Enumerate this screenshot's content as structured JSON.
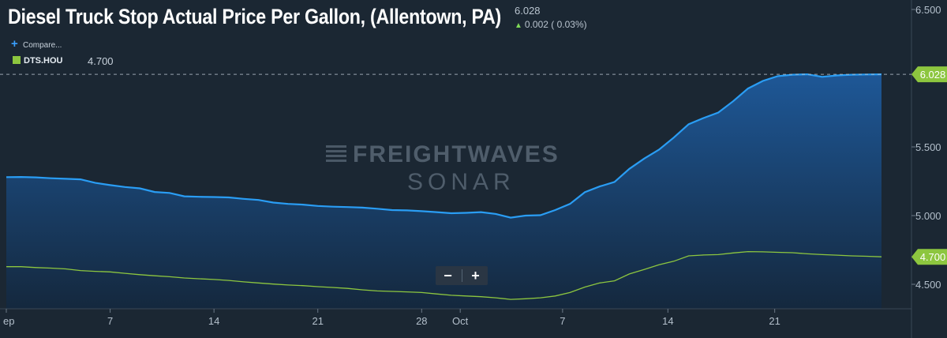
{
  "header": {
    "title": "Diesel Truck Stop Actual Price Per Gallon, (Allentown, PA)",
    "last_value": "6.028",
    "change": "0.002 ( 0.03%)"
  },
  "compare_label": "Compare...",
  "legend": {
    "label": "DTS.HOU",
    "value": "4.700"
  },
  "watermark": {
    "line1": "FREIGHTWAVES",
    "line2": "SONAR"
  },
  "zoom": {
    "minus": "−",
    "plus": "+"
  },
  "colors": {
    "background": "#1b2733",
    "primary": "#2a9df4",
    "secondary": "#8dc63f",
    "badge": "#8dc63f"
  },
  "chart_data": {
    "type": "area",
    "xlabel": "",
    "ylabel": "",
    "ylim": [
      4.4,
      6.55
    ],
    "y_ticks": [
      "6.500",
      "5.500",
      "5.000",
      "4.500"
    ],
    "x_ticks": [
      "ep",
      "7",
      "14",
      "21",
      "28",
      "Oct",
      "7",
      "14",
      "21"
    ],
    "series": [
      {
        "name": "Diesel Truck Stop Actual Price Per Gallon, (Allentown, PA)",
        "values": [
          5.28,
          5.281,
          5.278,
          5.272,
          5.268,
          5.264,
          5.238,
          5.222,
          5.208,
          5.198,
          5.172,
          5.165,
          5.14,
          5.137,
          5.135,
          5.132,
          5.122,
          5.114,
          5.095,
          5.085,
          5.08,
          5.07,
          5.065,
          5.062,
          5.058,
          5.05,
          5.04,
          5.038,
          5.032,
          5.025,
          5.017,
          5.02,
          5.025,
          5.012,
          4.985,
          5.0,
          5.003,
          5.04,
          5.085,
          5.17,
          5.212,
          5.245,
          5.34,
          5.415,
          5.48,
          5.568,
          5.665,
          5.71,
          5.75,
          5.832,
          5.925,
          5.98,
          6.015,
          6.025,
          6.028,
          6.01,
          6.02,
          6.025,
          6.027,
          6.028
        ],
        "last_label": "6.028"
      },
      {
        "name": "DTS.HOU",
        "values": [
          4.628,
          4.628,
          4.622,
          4.618,
          4.612,
          4.6,
          4.594,
          4.59,
          4.58,
          4.57,
          4.562,
          4.555,
          4.546,
          4.54,
          4.535,
          4.528,
          4.518,
          4.51,
          4.502,
          4.495,
          4.49,
          4.483,
          4.477,
          4.47,
          4.46,
          4.452,
          4.448,
          4.445,
          4.44,
          4.43,
          4.42,
          4.415,
          4.41,
          4.402,
          4.39,
          4.395,
          4.402,
          4.415,
          4.44,
          4.48,
          4.51,
          4.525,
          4.575,
          4.608,
          4.642,
          4.668,
          4.707,
          4.713,
          4.716,
          4.728,
          4.738,
          4.736,
          4.733,
          4.73,
          4.722,
          4.716,
          4.712,
          4.707,
          4.704,
          4.7
        ],
        "last_label": "4.700"
      }
    ]
  }
}
